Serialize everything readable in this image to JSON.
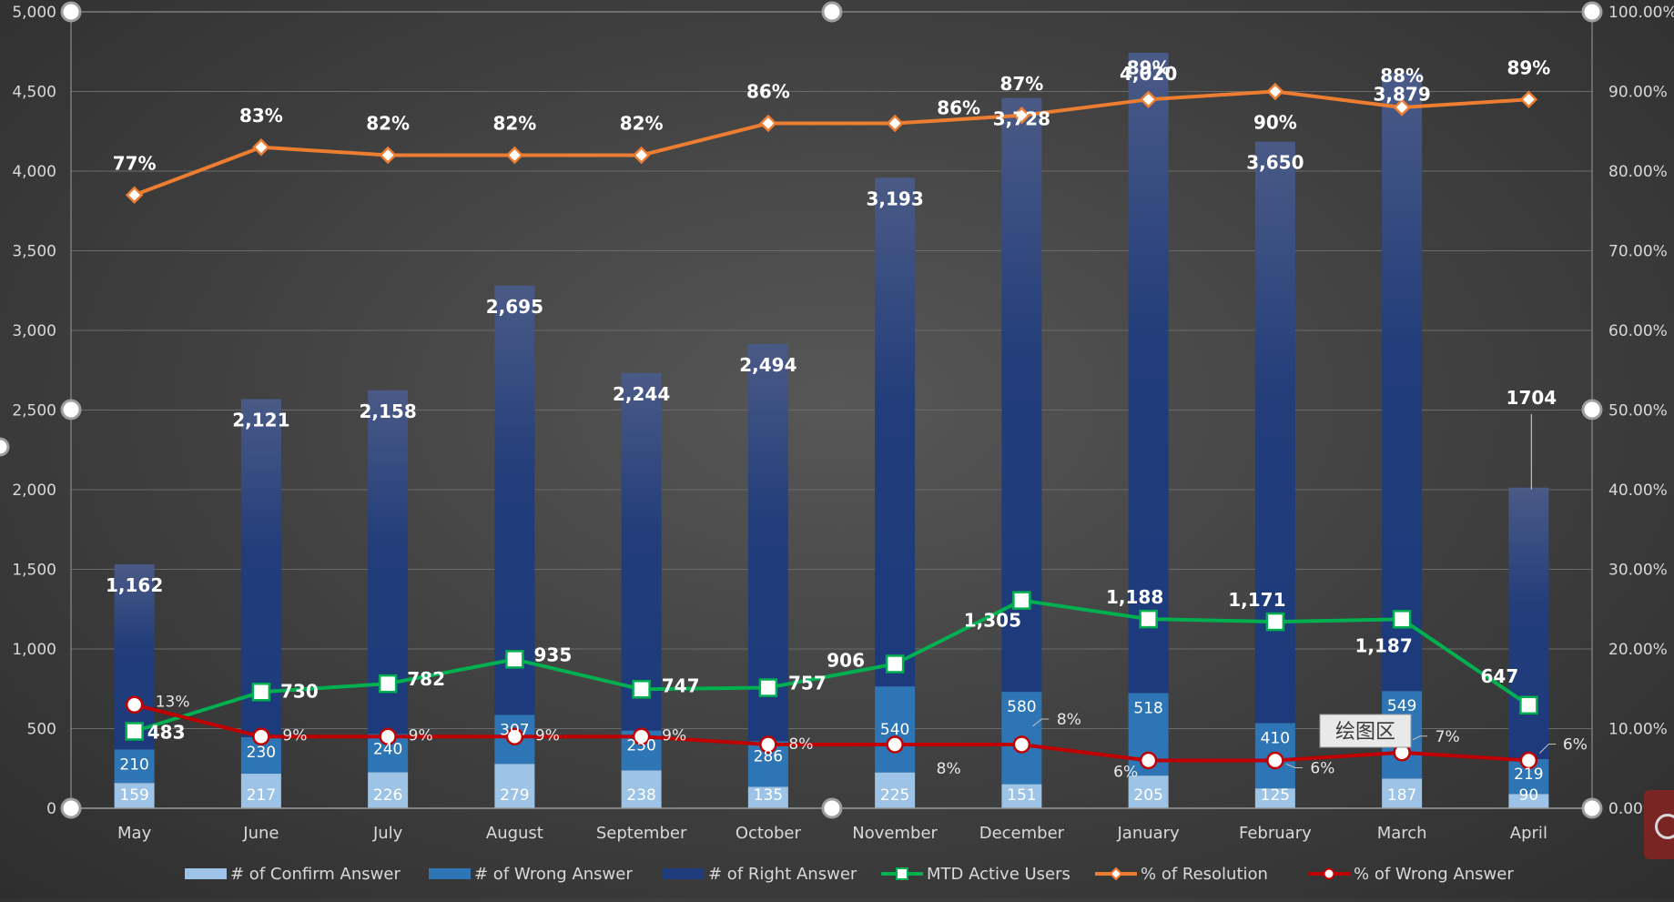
{
  "chart_data": {
    "type": "bar",
    "categories": [
      "May",
      "June",
      "July",
      "August",
      "September",
      "October",
      "November",
      "December",
      "January",
      "February",
      "March",
      "April"
    ],
    "series": [
      {
        "name": "# of Confirm Answer",
        "kind": "stacked-bar",
        "axis": "left",
        "color": "#9dc3e6",
        "values": [
          159,
          217,
          226,
          279,
          238,
          135,
          225,
          151,
          205,
          125,
          187,
          90
        ]
      },
      {
        "name": "# of Wrong Answer",
        "kind": "stacked-bar",
        "axis": "left",
        "color": "#2e75b6",
        "values": [
          210,
          230,
          240,
          307,
          250,
          286,
          540,
          580,
          518,
          410,
          549,
          219
        ]
      },
      {
        "name": "# of Right Answer",
        "kind": "stacked-bar",
        "axis": "left",
        "color": "#1f3d7a",
        "values": [
          1162,
          2121,
          2158,
          2695,
          2244,
          2494,
          3193,
          3728,
          4020,
          3650,
          3879,
          1704
        ]
      },
      {
        "name": "MTD Active Users",
        "kind": "line",
        "axis": "left",
        "color": "#00b050",
        "values": [
          483,
          730,
          782,
          935,
          747,
          757,
          906,
          1305,
          1188,
          1171,
          1187,
          647
        ]
      },
      {
        "name": "% of Resolution",
        "kind": "line",
        "axis": "right",
        "color": "#ed7d31",
        "values": [
          77,
          83,
          82,
          82,
          82,
          86,
          86,
          87,
          89,
          90,
          88,
          89
        ]
      },
      {
        "name": "% of Wrong Answer",
        "kind": "line",
        "axis": "right",
        "color": "#c00000",
        "values": [
          13,
          9,
          9,
          9,
          9,
          8,
          8,
          8,
          6,
          6,
          7,
          6
        ]
      }
    ],
    "labels": {
      "right": [
        "1,162",
        "2,121",
        "2,158",
        "2,695",
        "2,244",
        "2,494",
        "3,193",
        "3,728",
        "4,020",
        "3,650",
        "3,879",
        "1704"
      ],
      "users": [
        "483",
        "730",
        "782",
        "935",
        "747",
        "757",
        "906",
        "1,305",
        "1,188",
        "1,171",
        "1,187",
        "647"
      ],
      "resolution": [
        "77%",
        "83%",
        "82%",
        "82%",
        "82%",
        "86%",
        "86%",
        "87%",
        "89%",
        "90%",
        "88%",
        "89%"
      ],
      "wrong_pct": [
        "13%",
        "9%",
        "9%",
        "9%",
        "9%",
        "8%",
        "8%",
        "8%",
        "6%",
        "6%",
        "7%",
        "6%"
      ]
    },
    "y_left": {
      "min": 0,
      "max": 5000,
      "ticks": [
        "0",
        "500",
        "1,000",
        "1,500",
        "2,000",
        "2,500",
        "3,000",
        "3,500",
        "4,000",
        "4,500",
        "5,000"
      ]
    },
    "y_right": {
      "min": 0,
      "max": 100,
      "ticks": [
        "0.00%",
        "10.00%",
        "20.00%",
        "30.00%",
        "40.00%",
        "50.00%",
        "60.00%",
        "70.00%",
        "80.00%",
        "90.00%",
        "100.00%"
      ]
    },
    "grid": true,
    "legend_position": "bottom",
    "tooltip": "绘图区"
  }
}
